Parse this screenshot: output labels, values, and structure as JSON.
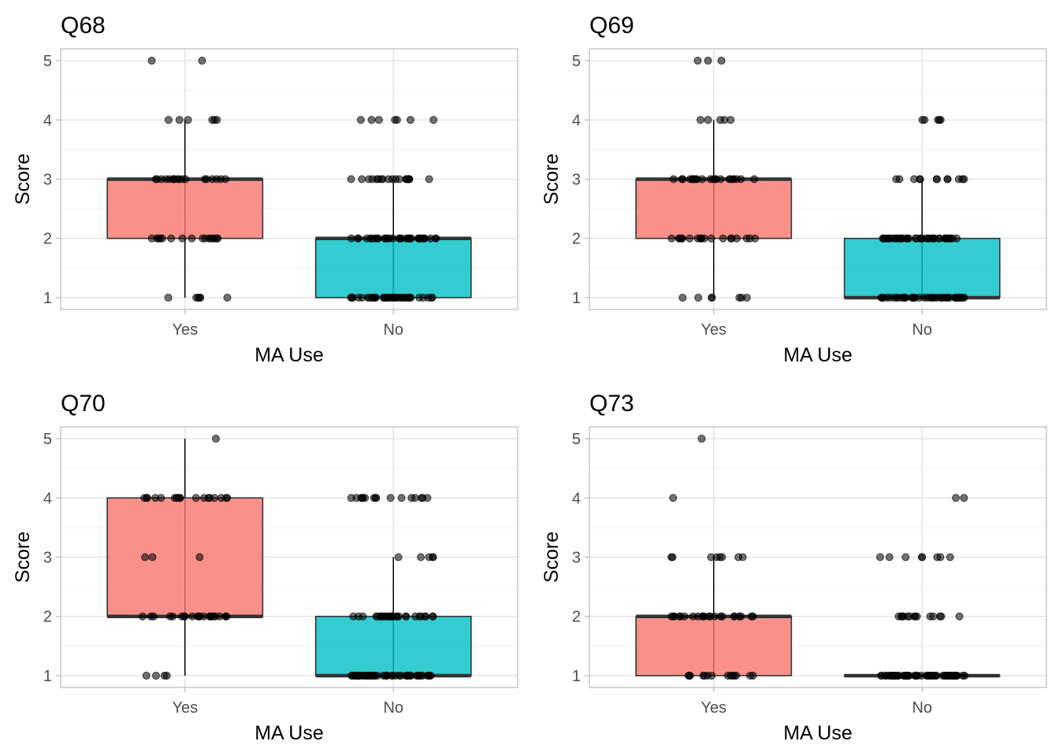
{
  "colors": {
    "yes": "#f8766d",
    "no": "#00bfc4",
    "points": "#000000"
  },
  "chart_data": [
    {
      "type": "box",
      "title": "Q68",
      "xlabel": "MA Use",
      "ylabel": "Score",
      "categories": [
        "Yes",
        "No"
      ],
      "ylim": [
        0.8,
        5.2
      ],
      "yticks": [
        1,
        2,
        3,
        4,
        5
      ],
      "grid": true,
      "boxes": [
        {
          "category": "Yes",
          "q1": 2,
          "median": 3,
          "q3": 3,
          "whisker_low": 1,
          "whisker_high": 4,
          "points": {
            "5": 2,
            "4": 6,
            "3": 18,
            "2": 16,
            "1": 6
          }
        },
        {
          "category": "No",
          "q1": 1,
          "median": 2,
          "q3": 2,
          "whisker_low": 1,
          "whisker_high": 3,
          "points": {
            "4": 7,
            "3": 20,
            "2": 34,
            "1": 40
          }
        }
      ]
    },
    {
      "type": "box",
      "title": "Q69",
      "xlabel": "MA Use",
      "ylabel": "Score",
      "categories": [
        "Yes",
        "No"
      ],
      "ylim": [
        0.8,
        5.2
      ],
      "yticks": [
        1,
        2,
        3,
        4,
        5
      ],
      "grid": true,
      "boxes": [
        {
          "category": "Yes",
          "q1": 2,
          "median": 3,
          "q3": 3,
          "whisker_low": 1,
          "whisker_high": 4,
          "points": {
            "5": 3,
            "4": 5,
            "3": 22,
            "2": 20,
            "1": 7
          }
        },
        {
          "category": "No",
          "q1": 1,
          "median": 1,
          "q3": 2,
          "whisker_low": 1,
          "whisker_high": 3,
          "points": {
            "4": 5,
            "3": 12,
            "2": 40,
            "1": 45
          }
        }
      ]
    },
    {
      "type": "box",
      "title": "Q70",
      "xlabel": "MA Use",
      "ylabel": "Score",
      "categories": [
        "Yes",
        "No"
      ],
      "ylim": [
        0.8,
        5.2
      ],
      "yticks": [
        1,
        2,
        3,
        4,
        5
      ],
      "grid": true,
      "boxes": [
        {
          "category": "Yes",
          "q1": 2,
          "median": 2,
          "q3": 4,
          "whisker_low": 1,
          "whisker_high": 5,
          "points": {
            "5": 1,
            "4": 18,
            "3": 3,
            "2": 22,
            "1": 4
          }
        },
        {
          "category": "No",
          "q1": 1,
          "median": 1,
          "q3": 2,
          "whisker_low": 1,
          "whisker_high": 3,
          "points": {
            "4": 16,
            "3": 5,
            "2": 30,
            "1": 50
          }
        }
      ]
    },
    {
      "type": "box",
      "title": "Q73",
      "xlabel": "MA Use",
      "ylabel": "Score",
      "categories": [
        "Yes",
        "No"
      ],
      "ylim": [
        0.8,
        5.2
      ],
      "yticks": [
        1,
        2,
        3,
        4,
        5
      ],
      "grid": true,
      "boxes": [
        {
          "category": "Yes",
          "q1": 1,
          "median": 2,
          "q3": 2,
          "whisker_low": 1,
          "whisker_high": 3,
          "points": {
            "5": 1,
            "4": 1,
            "3": 8,
            "2": 22,
            "1": 14
          }
        },
        {
          "category": "No",
          "q1": 1,
          "median": 1,
          "q3": 1,
          "whisker_low": 1,
          "whisker_high": 1,
          "points": {
            "4": 2,
            "3": 8,
            "2": 14,
            "1": 60
          }
        }
      ]
    }
  ]
}
